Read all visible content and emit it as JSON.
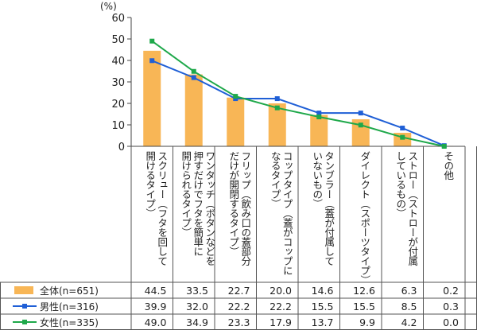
{
  "chart_data": {
    "type": "bar",
    "unit_label": "(%)",
    "ylim": [
      0,
      60
    ],
    "yticks": [
      0,
      10,
      20,
      30,
      40,
      50,
      60
    ],
    "categories": [
      [
        "スクリュー（フタを回して",
        "開けるタイプ）"
      ],
      [
        "ワンタッチ（ボタンなどを",
        "押すだけでフタを簡単に",
        "開けられるタイプ）"
      ],
      [
        "フリップ（飲み口の蓋部分",
        "だけが開閉するタイプ）"
      ],
      [
        "コップタイプ（蓋がコップに",
        "なるタイプ）"
      ],
      [
        "タンブラー（蓋が付属して",
        "いないもの）"
      ],
      [
        "ダイレクト（スポーツタイプ）"
      ],
      [
        "ストロー（ストローが付属",
        "しているもの）"
      ],
      [
        "その他"
      ]
    ],
    "series": [
      {
        "name": "全体(n=651)",
        "kind": "bar",
        "color": "#F8B656",
        "values": [
          "44.5",
          "33.5",
          "22.7",
          "20.0",
          "14.6",
          "12.6",
          "6.3",
          "0.2"
        ]
      },
      {
        "name": "男性(n=316)",
        "kind": "line",
        "color": "#1F5FD6",
        "values": [
          "39.9",
          "32.0",
          "22.2",
          "22.2",
          "15.5",
          "15.5",
          "8.5",
          "0.3"
        ]
      },
      {
        "name": "女性(n=335)",
        "kind": "line",
        "color": "#1EA84A",
        "values": [
          "49.0",
          "34.9",
          "23.3",
          "17.9",
          "13.7",
          "9.9",
          "4.2",
          "0.0"
        ]
      }
    ],
    "grid": false,
    "legend": "table-left"
  }
}
